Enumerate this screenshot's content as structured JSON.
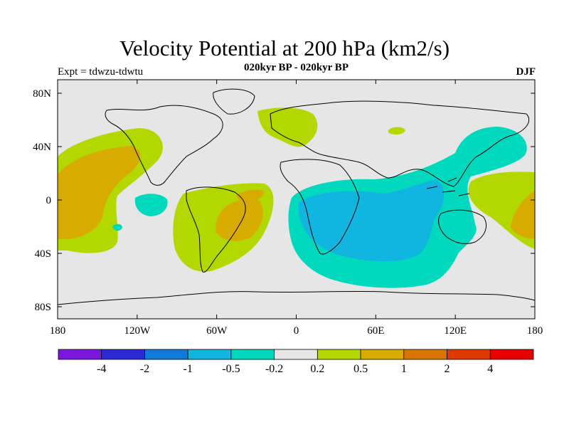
{
  "header": {
    "title": "Velocity Potential at 200 hPa (km2/s)",
    "subtitle": "020kyr BP - 020kyr BP",
    "left_label": "Expt = tdwzu-tdwtu",
    "right_label": "DJF"
  },
  "axes": {
    "x_ticks": [
      "180",
      "120W",
      "60W",
      "0",
      "60E",
      "120E",
      "180"
    ],
    "y_ticks": [
      "80N",
      "40N",
      "0",
      "40S",
      "80S"
    ]
  },
  "colorbar": {
    "colors": [
      "#7c17dd",
      "#2a2ad4",
      "#0f7ad8",
      "#10b6df",
      "#00d9bd",
      "#e6e6e6",
      "#b3d800",
      "#d8ab00",
      "#d97400",
      "#df3900",
      "#e80000"
    ],
    "labels": [
      "-4",
      "-2",
      "-1",
      "-0.5",
      "-0.2",
      "0.2",
      "0.5",
      "1",
      "2",
      "4"
    ]
  }
}
